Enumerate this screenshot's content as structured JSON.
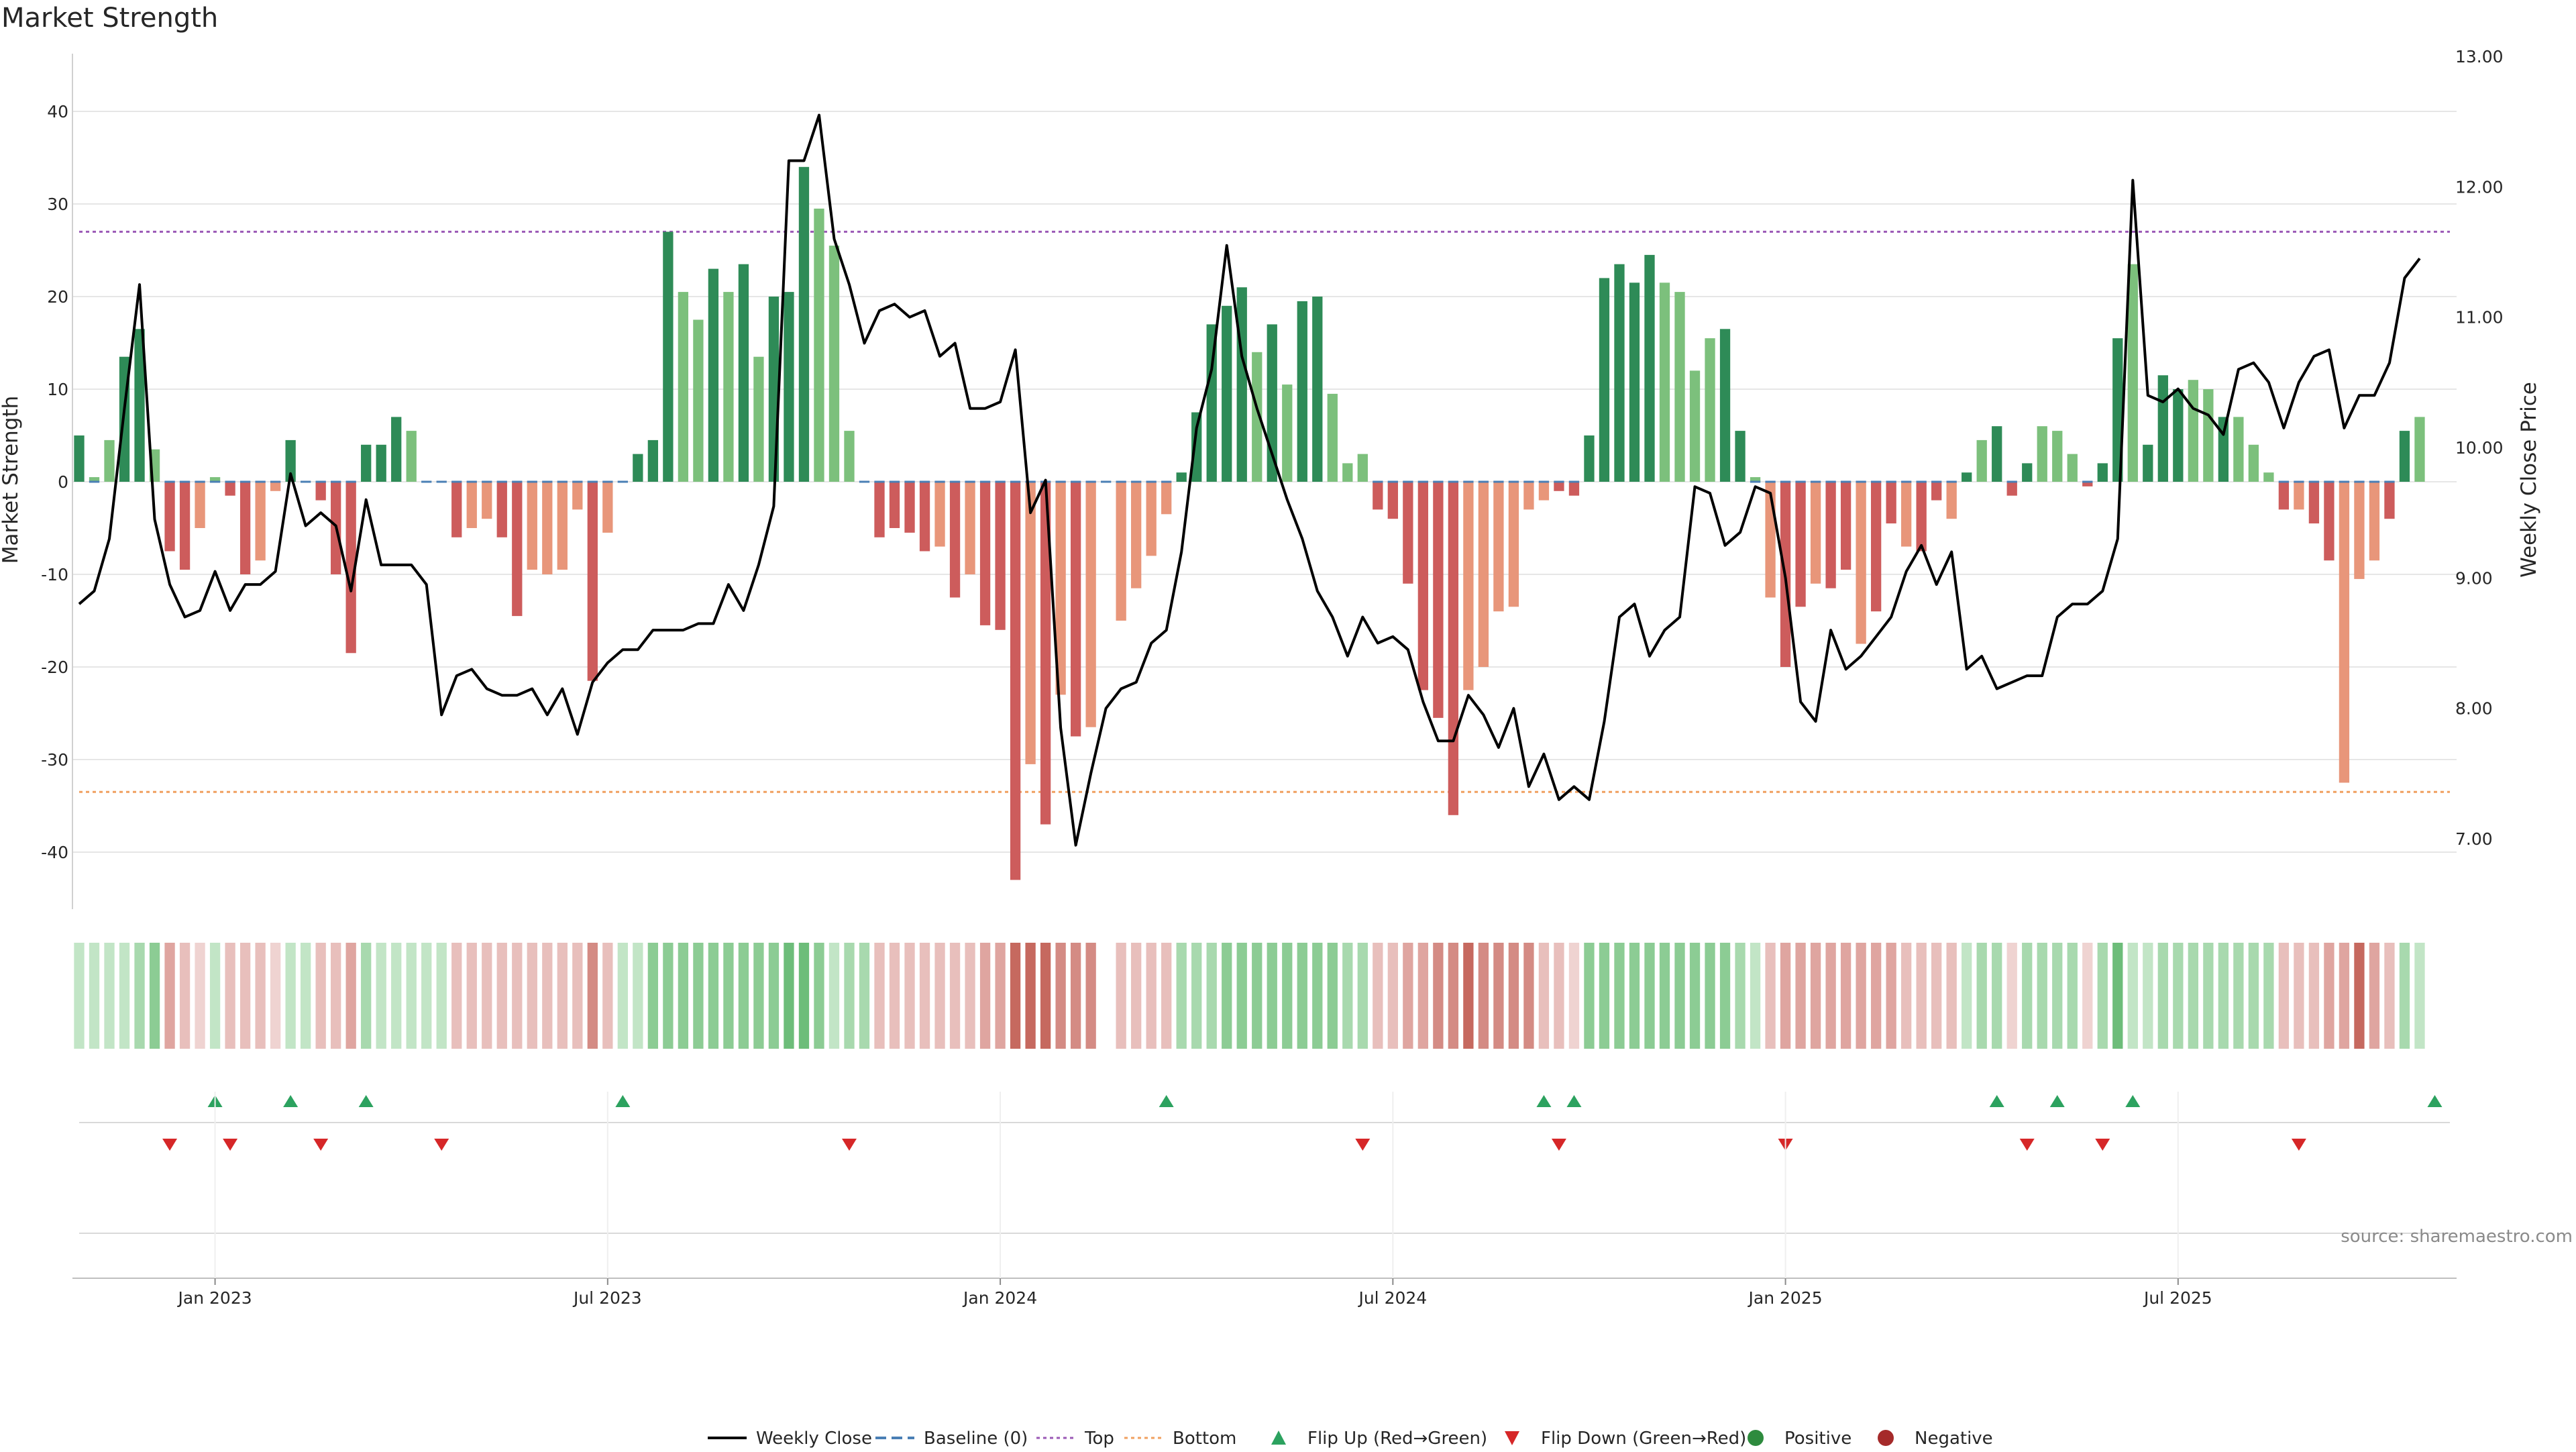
{
  "chart_data": {
    "type": "bar",
    "title": "Market Strength",
    "ylabel_left": "Market Strength",
    "ylabel_right": "Weekly Close Price",
    "ylim_left": [
      -46,
      46
    ],
    "ylim_right": [
      6.6,
      13.0
    ],
    "yticks_left": [
      -40,
      -30,
      -20,
      -10,
      0,
      10,
      20,
      30,
      40
    ],
    "yticks_right": [
      "7.00",
      "8.00",
      "9.00",
      "10.00",
      "11.00",
      "12.00",
      "13.00"
    ],
    "x_tick_labels": [
      "Jan 2023",
      "Jul 2023",
      "Jan 2024",
      "Jul 2024",
      "Jan 2025",
      "Jul 2025"
    ],
    "x_tick_weeks": [
      9,
      35,
      61,
      87,
      113,
      139
    ],
    "top_threshold": 27,
    "bottom_threshold": -33.5,
    "grid": true,
    "weeks": 158,
    "strength": [
      5,
      0.5,
      4.5,
      13.5,
      16.5,
      3.5,
      -7.5,
      -9.5,
      -5,
      0.5,
      -1.5,
      -10,
      -8.5,
      -1,
      4.5,
      0,
      -2,
      -10,
      -18.5,
      4,
      4,
      7,
      5.5,
      0,
      0,
      -6,
      -5,
      -4,
      -6,
      -14.5,
      -9.5,
      -10,
      -9.5,
      -3,
      -21.5,
      -5.5,
      0,
      3,
      4.5,
      27,
      20.5,
      17.5,
      23,
      20.5,
      23.5,
      13.5,
      20,
      20.5,
      34,
      29.5,
      25.5,
      5.5,
      0,
      -6,
      -5,
      -5.5,
      -7.5,
      -7,
      -12.5,
      -10,
      -15.5,
      -16,
      -43,
      -30.5,
      -37,
      -23,
      -27.5,
      -26.5,
      0,
      -15,
      -11.5,
      -8,
      -3.5,
      1,
      7.5,
      17,
      19,
      21,
      14,
      17,
      10.5,
      19.5,
      20,
      9.5,
      2,
      3,
      -3,
      -4,
      -11,
      -22.5,
      -25.5,
      -36,
      -22.5,
      -20,
      -14,
      -13.5,
      -3,
      -2,
      -1,
      -1.5,
      5,
      22,
      23.5,
      21.5,
      24.5,
      21.5,
      20.5,
      12,
      15.5,
      16.5,
      5.5,
      0.5,
      -12.5,
      -20,
      -13.5,
      -11,
      -11.5,
      -9.5,
      -17.5,
      -14,
      -4.5,
      -7,
      -7.5,
      -2,
      -4,
      1,
      4.5,
      6,
      -1.5,
      2,
      6,
      5.5,
      3,
      -0.5,
      2,
      15.5,
      23.5,
      4,
      11.5,
      10,
      11,
      10,
      7,
      7,
      4,
      1,
      -3,
      -3,
      -4.5,
      -8.5,
      -32.5,
      -10.5,
      -8.5,
      -4,
      5.5,
      7
    ],
    "strength_shade": [
      1,
      0,
      0,
      1,
      1,
      0,
      1,
      1,
      0,
      0,
      1,
      1,
      0,
      0,
      1,
      0,
      1,
      1,
      1,
      1,
      1,
      1,
      0,
      0,
      0,
      1,
      0,
      0,
      1,
      1,
      0,
      0,
      0,
      0,
      1,
      0,
      0,
      1,
      1,
      1,
      0,
      0,
      1,
      0,
      1,
      0,
      1,
      1,
      1,
      0,
      0,
      0,
      0,
      1,
      1,
      1,
      1,
      0,
      1,
      0,
      1,
      1,
      1,
      0,
      1,
      0,
      1,
      0,
      0,
      0,
      0,
      0,
      0,
      1,
      1,
      1,
      1,
      1,
      0,
      1,
      0,
      1,
      1,
      0,
      0,
      0,
      1,
      1,
      1,
      1,
      1,
      1,
      0,
      0,
      0,
      0,
      0,
      0,
      1,
      1,
      1,
      1,
      1,
      1,
      1,
      0,
      0,
      0,
      0,
      1,
      1,
      0,
      0,
      1,
      1,
      0,
      1,
      1,
      0,
      1,
      1,
      0,
      1,
      1,
      0,
      1,
      0,
      1,
      1,
      1,
      0,
      0,
      0,
      1,
      1,
      1,
      0,
      1,
      1,
      1,
      0,
      0,
      1,
      0,
      0,
      0,
      1,
      0,
      1,
      1,
      0,
      0,
      0,
      1,
      1
    ],
    "close": [
      8.8,
      8.9,
      9.3,
      10.3,
      11.25,
      9.45,
      8.95,
      8.7,
      8.75,
      9.05,
      8.75,
      8.95,
      8.95,
      9.05,
      9.8,
      9.4,
      9.5,
      9.4,
      8.9,
      9.6,
      9.1,
      9.1,
      9.1,
      8.95,
      7.95,
      8.25,
      8.3,
      8.15,
      8.1,
      8.1,
      8.15,
      7.95,
      8.15,
      7.8,
      8.2,
      8.35,
      8.45,
      8.45,
      8.6,
      8.6,
      8.6,
      8.65,
      8.65,
      8.95,
      8.75,
      9.1,
      9.55,
      12.2,
      12.2,
      12.55,
      11.6,
      11.25,
      10.8,
      11.05,
      11.1,
      11.0,
      11.05,
      10.7,
      10.8,
      10.3,
      10.3,
      10.35,
      10.75,
      9.5,
      9.75,
      7.85,
      6.95,
      7.5,
      8.0,
      8.15,
      8.2,
      8.5,
      8.6,
      9.2,
      10.15,
      10.6,
      11.55,
      10.7,
      10.3,
      9.95,
      9.6,
      9.3,
      8.9,
      8.7,
      8.4,
      8.7,
      8.5,
      8.55,
      8.45,
      8.05,
      7.75,
      7.75,
      8.1,
      7.95,
      7.7,
      8.0,
      7.4,
      7.65,
      7.3,
      7.4,
      7.3,
      7.9,
      8.7,
      8.8,
      8.4,
      8.6,
      8.7,
      9.7,
      9.65,
      9.25,
      9.35,
      9.7,
      9.65,
      9.0,
      8.05,
      7.9,
      8.6,
      8.3,
      8.4,
      8.55,
      8.7,
      9.05,
      9.25,
      8.95,
      9.2,
      8.3,
      8.4,
      8.15,
      8.2,
      8.25,
      8.25,
      8.7,
      8.8,
      8.8,
      8.9,
      9.3,
      12.05,
      10.4,
      10.35,
      10.45,
      10.3,
      10.25,
      10.1,
      10.6,
      10.65,
      10.5,
      10.15,
      10.5,
      10.7,
      10.75,
      10.15,
      10.4,
      10.4,
      10.65,
      11.3,
      11.45
    ],
    "tint_level": [
      0,
      0,
      0,
      0,
      1,
      2,
      2,
      1,
      0,
      0,
      1,
      1,
      1,
      0,
      0,
      0,
      1,
      1,
      2,
      1,
      0,
      0,
      0,
      0,
      0,
      1,
      1,
      1,
      1,
      1,
      1,
      1,
      1,
      1,
      3,
      1,
      0,
      0,
      2,
      2,
      2,
      2,
      2,
      2,
      2,
      2,
      2,
      3,
      3,
      2,
      0,
      1,
      1,
      1,
      1,
      1,
      1,
      1,
      1,
      1,
      2,
      2,
      4,
      4,
      4,
      3,
      3,
      3,
      0,
      1,
      1,
      1,
      1,
      1,
      1,
      1,
      2,
      2,
      2,
      2,
      2,
      2,
      2,
      2,
      1,
      1,
      1,
      1,
      2,
      2,
      3,
      3,
      4,
      3,
      3,
      3,
      3,
      1,
      1,
      0,
      2,
      2,
      2,
      2,
      2,
      2,
      2,
      2,
      2,
      2,
      1,
      0,
      1,
      2,
      2,
      2,
      2,
      2,
      2,
      2,
      2,
      1,
      1,
      1,
      1,
      0,
      1,
      1,
      0,
      1,
      1,
      1,
      1,
      0,
      1,
      3,
      0,
      0,
      1,
      1,
      1,
      1,
      1,
      1,
      1,
      1,
      1,
      1,
      1,
      2,
      2,
      4,
      2,
      1,
      1,
      0,
      0
    ],
    "tint_visible": [
      1,
      1,
      1,
      1,
      1,
      1,
      1,
      1,
      1,
      1,
      1,
      1,
      1,
      1,
      1,
      1,
      1,
      1,
      1,
      1,
      1,
      1,
      1,
      1,
      1,
      1,
      1,
      1,
      1,
      1,
      1,
      1,
      1,
      1,
      1,
      1,
      1,
      1,
      1,
      1,
      1,
      1,
      1,
      1,
      1,
      1,
      1,
      1,
      1,
      1,
      1,
      1,
      1,
      1,
      1,
      1,
      1,
      1,
      1,
      1,
      1,
      1,
      1,
      1,
      1,
      1,
      1,
      1,
      0,
      1,
      1,
      1,
      1,
      1,
      1,
      1,
      1,
      1,
      1,
      1,
      1,
      1,
      1,
      1,
      1,
      1,
      1,
      1,
      1,
      1,
      1,
      1,
      1,
      1,
      1,
      1,
      1,
      1,
      1,
      1,
      1,
      1,
      1,
      1,
      1,
      1,
      1,
      1,
      1,
      1,
      1,
      1,
      1,
      1,
      1,
      1,
      1,
      1,
      1,
      1,
      1,
      1,
      1,
      1,
      1,
      1,
      1,
      1,
      1,
      1,
      1,
      1,
      1,
      1,
      1,
      1,
      1,
      1,
      1,
      1,
      1,
      1,
      1,
      1,
      1,
      1,
      1,
      1,
      1,
      1,
      1,
      1,
      1,
      1,
      1,
      1,
      1,
      1
    ],
    "flip_up_weeks": [
      9,
      14,
      19,
      36,
      72,
      97,
      99,
      127,
      131,
      136,
      156
    ],
    "flip_down_weeks": [
      6,
      10,
      16,
      24,
      51,
      85,
      98,
      113,
      129,
      134,
      147
    ],
    "legend": [
      {
        "label": "Weekly Close",
        "kind": "line",
        "color": "#000000"
      },
      {
        "label": "Baseline (0)",
        "kind": "dash",
        "color": "#4a7fb5"
      },
      {
        "label": "Top",
        "kind": "dot",
        "color": "#9b59b6"
      },
      {
        "label": "Bottom",
        "kind": "dot",
        "color": "#f0a060"
      },
      {
        "label": "Flip Up (Red→Green)",
        "kind": "triangle-up",
        "color": "#2ca25f"
      },
      {
        "label": "Flip Down (Green→Red)",
        "kind": "triangle-down",
        "color": "#d62728"
      },
      {
        "label": "Positive",
        "kind": "circle",
        "color": "#2e8b3e"
      },
      {
        "label": "Negative",
        "kind": "circle",
        "color": "#a52a2a"
      }
    ],
    "source_note": "source: sharemaestro.com"
  },
  "colors": {
    "pos_dark": "#2e8b57",
    "pos_light": "#7cc07c",
    "neg_dark": "#cd5c5c",
    "neg_light": "#e8967a",
    "top_line": "#9b59b6",
    "bottom_line": "#f0a060",
    "baseline": "#4a7fb5",
    "grid": "#e6e6e6",
    "axis": "#d0d0d0"
  }
}
